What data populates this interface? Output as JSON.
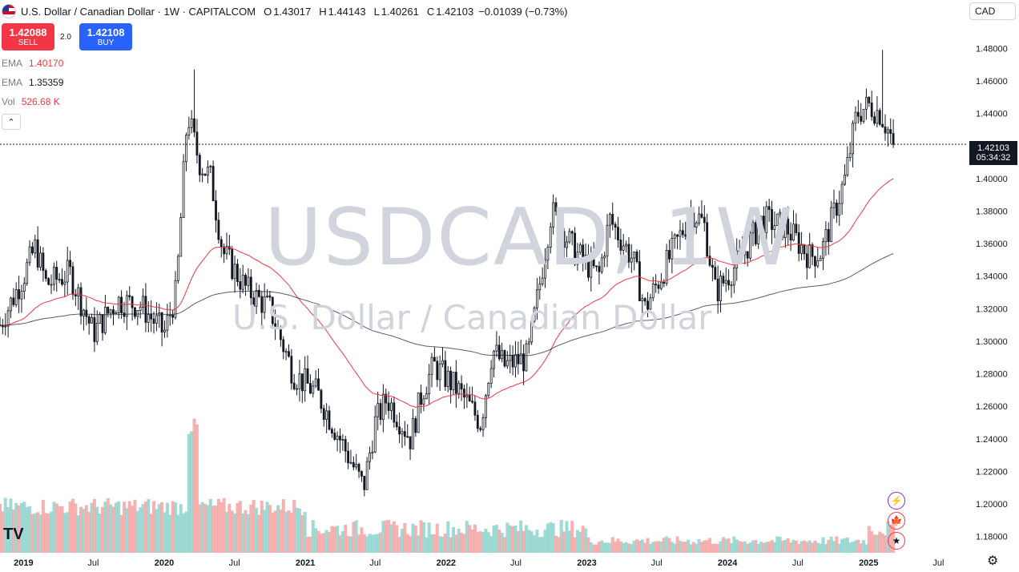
{
  "header": {
    "symbol_title": "U.S. Dollar / Canadian Dollar · 1W · CAPITALCOM",
    "open_label": "O",
    "open": "1.43017",
    "high_label": "H",
    "high": "1.44143",
    "low_label": "L",
    "low": "1.40261",
    "close_label": "C",
    "close": "1.42103",
    "change": "−0.01039 (−0.73%)"
  },
  "currency_selector": "CAD",
  "trade": {
    "sell_price": "1.42088",
    "sell_label": "SELL",
    "spread": "2.0",
    "buy_price": "1.42108",
    "buy_label": "BUY"
  },
  "indicators": [
    {
      "name": "EMA",
      "value": "1.40170",
      "color": "#f23645"
    },
    {
      "name": "EMA",
      "value": "1.35359",
      "color": "#131722"
    },
    {
      "name": "Vol",
      "value": "526.68 K",
      "color": "#f23645"
    }
  ],
  "collapse_icon": "chevron-up-icon",
  "watermark": {
    "main": "USDCAD, 1W",
    "sub": "U.S. Dollar / Canadian Dollar"
  },
  "price_tag": {
    "price": "1.42103",
    "countdown": "05:34:32"
  },
  "logo": "TV",
  "colors": {
    "up": "#26a69a",
    "down": "#ef5350",
    "ema_fast": "#f23645",
    "ema_slow": "#131722",
    "vol_up": "#8fd3cc",
    "vol_down": "#f5a3a3",
    "price_line": "#131722"
  },
  "chart_data": {
    "type": "candlestick",
    "title": "U.S. Dollar / Canadian Dollar",
    "interval": "1W",
    "y_axis": {
      "ticks": [
        1.18,
        1.2,
        1.22,
        1.24,
        1.26,
        1.28,
        1.3,
        1.32,
        1.34,
        1.36,
        1.38,
        1.4,
        1.42,
        1.44,
        1.46,
        1.48
      ],
      "tick_labels": [
        "1.18000",
        "1.20000",
        "1.22000",
        "1.24000",
        "1.26000",
        "1.28000",
        "1.30000",
        "1.32000",
        "1.34000",
        "1.36000",
        "1.38000",
        "1.40000",
        "1.42000",
        "1.44000",
        "1.46000",
        "1.48000"
      ],
      "range": [
        1.17,
        1.49
      ]
    },
    "x_axis": {
      "tick_labels": [
        "2019",
        "Jul",
        "2020",
        "Jul",
        "2021",
        "Jul",
        "2022",
        "Jul",
        "2023",
        "Jul",
        "2024",
        "Jul",
        "2025",
        "Jul"
      ],
      "tick_dates": [
        "2019-01",
        "2019-07",
        "2020-01",
        "2020-07",
        "2021-01",
        "2021-07",
        "2022-01",
        "2022-07",
        "2023-01",
        "2023-07",
        "2024-01",
        "2024-07",
        "2025-01",
        "2025-07"
      ]
    },
    "price_path": [
      [
        "2018-11",
        1.31
      ],
      [
        "2019-01",
        1.34
      ],
      [
        "2019-02",
        1.358
      ],
      [
        "2019-03",
        1.335
      ],
      [
        "2019-05",
        1.342
      ],
      [
        "2019-07",
        1.305
      ],
      [
        "2019-09",
        1.325
      ],
      [
        "2019-11",
        1.322
      ],
      [
        "2020-01",
        1.305
      ],
      [
        "2020-02",
        1.33
      ],
      [
        "2020-03",
        1.44
      ],
      [
        "2020-04",
        1.41
      ],
      [
        "2020-05",
        1.4
      ],
      [
        "2020-06",
        1.355
      ],
      [
        "2020-08",
        1.332
      ],
      [
        "2020-10",
        1.32
      ],
      [
        "2020-12",
        1.28
      ],
      [
        "2021-02",
        1.268
      ],
      [
        "2021-04",
        1.24
      ],
      [
        "2021-06",
        1.21
      ],
      [
        "2021-07",
        1.25
      ],
      [
        "2021-08",
        1.265
      ],
      [
        "2021-10",
        1.24
      ],
      [
        "2021-11",
        1.27
      ],
      [
        "2021-12",
        1.285
      ],
      [
        "2022-02",
        1.27
      ],
      [
        "2022-04",
        1.25
      ],
      [
        "2022-05",
        1.295
      ],
      [
        "2022-06",
        1.285
      ],
      [
        "2022-08",
        1.29
      ],
      [
        "2022-10",
        1.38
      ],
      [
        "2022-12",
        1.355
      ],
      [
        "2023-02",
        1.34
      ],
      [
        "2023-03",
        1.375
      ],
      [
        "2023-05",
        1.35
      ],
      [
        "2023-06",
        1.32
      ],
      [
        "2023-08",
        1.35
      ],
      [
        "2023-10",
        1.38
      ],
      [
        "2023-11",
        1.372
      ],
      [
        "2023-12",
        1.33
      ],
      [
        "2024-02",
        1.35
      ],
      [
        "2024-04",
        1.375
      ],
      [
        "2024-06",
        1.37
      ],
      [
        "2024-08",
        1.352
      ],
      [
        "2024-09",
        1.355
      ],
      [
        "2024-11",
        1.4
      ],
      [
        "2024-12",
        1.44
      ],
      [
        "2025-01",
        1.445
      ],
      [
        "2025-02",
        1.44
      ],
      [
        "2025-03",
        1.425
      ]
    ],
    "ema_fast_label": "EMA 1.40170",
    "ema_slow_label": "EMA 1.35359",
    "volume_label": "Vol 526.68 K",
    "last_price": 1.42103,
    "high_peak": 1.479,
    "grid": false
  }
}
